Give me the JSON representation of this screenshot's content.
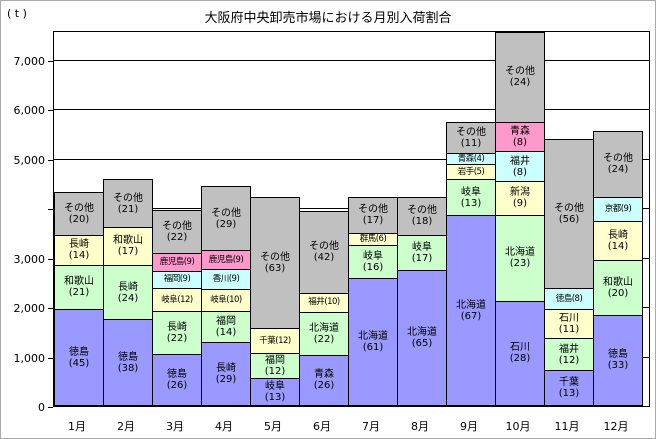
{
  "chart": {
    "title": "大阪府中央卸売市場における月別入荷割合",
    "unit_label": "( t )",
    "colors": {
      "purple": "#9999ff",
      "green": "#ccffcc",
      "yellow": "#ffffcc",
      "cyan": "#ccffff",
      "pink": "#ff99cc",
      "gray": "#c0c0c0"
    }
  },
  "chart_data": {
    "type": "bar",
    "stacked": true,
    "title": "大阪府中央卸売市場における月別入荷割合",
    "ylabel": "( t )",
    "grid": true,
    "legend": "none (labels inside segments)",
    "y_axis": {
      "max_t": 7560,
      "tick_interval": 1000,
      "ticks": [
        {
          "v": 0,
          "label": "0"
        },
        {
          "v": 1000,
          "label": "1,000"
        },
        {
          "v": 2000,
          "label": "2,000"
        },
        {
          "v": 3000,
          "label": "3,000"
        },
        {
          "v": 4000,
          "label": ""
        },
        {
          "v": 5000,
          "label": "5,000"
        },
        {
          "v": 6000,
          "label": "6,000"
        },
        {
          "v": 7000,
          "label": "7,000"
        }
      ]
    },
    "categories": [
      "1月",
      "2月",
      "3月",
      "4月",
      "5月",
      "6月",
      "7月",
      "8月",
      "9月",
      "10月",
      "11月",
      "12月"
    ],
    "bars": [
      {
        "month": "1月",
        "total_t": 4300,
        "segments": [
          {
            "name": "徳島",
            "pct": 45,
            "color": "purple",
            "two_line": true
          },
          {
            "name": "和歌山",
            "pct": 21,
            "color": "green",
            "two_line": true
          },
          {
            "name": "長崎",
            "pct": 14,
            "color": "yellow",
            "two_line": true
          },
          {
            "name": "その他",
            "pct": 20,
            "color": "gray",
            "two_line": true
          }
        ]
      },
      {
        "month": "2月",
        "total_t": 4560,
        "segments": [
          {
            "name": "徳島",
            "pct": 38,
            "color": "purple",
            "two_line": true
          },
          {
            "name": "長崎",
            "pct": 24,
            "color": "green",
            "two_line": true
          },
          {
            "name": "和歌山",
            "pct": 17,
            "color": "yellow",
            "two_line": true
          },
          {
            "name": "その他",
            "pct": 21,
            "color": "gray",
            "two_line": true
          }
        ]
      },
      {
        "month": "3月",
        "total_t": 3940,
        "segments": [
          {
            "name": "徳島",
            "pct": 26,
            "color": "purple",
            "two_line": true
          },
          {
            "name": "長崎",
            "pct": 22,
            "color": "green",
            "two_line": true
          },
          {
            "name": "岐阜",
            "pct": 12,
            "color": "yellow",
            "two_line": false
          },
          {
            "name": "福岡",
            "pct": 9,
            "color": "cyan",
            "two_line": false
          },
          {
            "name": "鹿児島",
            "pct": 9,
            "color": "pink",
            "two_line": false
          },
          {
            "name": "その他",
            "pct": 22,
            "color": "gray",
            "two_line": true
          }
        ]
      },
      {
        "month": "4月",
        "total_t": 4420,
        "segments": [
          {
            "name": "長崎",
            "pct": 29,
            "color": "purple",
            "two_line": true
          },
          {
            "name": "福岡",
            "pct": 14,
            "color": "green",
            "two_line": true
          },
          {
            "name": "岐阜",
            "pct": 10,
            "color": "yellow",
            "two_line": false
          },
          {
            "name": "香川",
            "pct": 9,
            "color": "cyan",
            "two_line": false
          },
          {
            "name": "鹿児島",
            "pct": 9,
            "color": "pink",
            "two_line": false
          },
          {
            "name": "その他",
            "pct": 29,
            "color": "gray",
            "two_line": true
          }
        ]
      },
      {
        "month": "5月",
        "total_t": 4200,
        "segments": [
          {
            "name": "岐阜",
            "pct": 13,
            "color": "purple",
            "two_line": true
          },
          {
            "name": "福岡",
            "pct": 12,
            "color": "green",
            "two_line": true
          },
          {
            "name": "千葉",
            "pct": 12,
            "color": "yellow",
            "two_line": false
          },
          {
            "name": "その他",
            "pct": 63,
            "color": "gray",
            "two_line": true
          }
        ]
      },
      {
        "month": "6月",
        "total_t": 3920,
        "segments": [
          {
            "name": "青森",
            "pct": 26,
            "color": "purple",
            "two_line": true
          },
          {
            "name": "北海道",
            "pct": 22,
            "color": "green",
            "two_line": true
          },
          {
            "name": "福井",
            "pct": 10,
            "color": "yellow",
            "two_line": false
          },
          {
            "name": "その他",
            "pct": 42,
            "color": "gray",
            "two_line": true
          }
        ]
      },
      {
        "month": "7月",
        "total_t": 4200,
        "segments": [
          {
            "name": "北海道",
            "pct": 61,
            "color": "purple",
            "two_line": true
          },
          {
            "name": "岐阜",
            "pct": 16,
            "color": "green",
            "two_line": true
          },
          {
            "name": "群馬",
            "pct": 6,
            "color": "yellow",
            "two_line": false
          },
          {
            "name": "その他",
            "pct": 17,
            "color": "gray",
            "two_line": true
          }
        ]
      },
      {
        "month": "8月",
        "total_t": 4200,
        "segments": [
          {
            "name": "北海道",
            "pct": 65,
            "color": "purple",
            "two_line": true
          },
          {
            "name": "岐阜",
            "pct": 17,
            "color": "green",
            "two_line": true
          },
          {
            "name": "その他",
            "pct": 18,
            "color": "gray",
            "two_line": true
          }
        ]
      },
      {
        "month": "9月",
        "total_t": 5720,
        "segments": [
          {
            "name": "北海道",
            "pct": 67,
            "color": "purple",
            "two_line": true
          },
          {
            "name": "岐阜",
            "pct": 13,
            "color": "green",
            "two_line": true
          },
          {
            "name": "岩手",
            "pct": 5,
            "color": "yellow",
            "two_line": false
          },
          {
            "name": "青森",
            "pct": 4,
            "color": "cyan",
            "two_line": false
          },
          {
            "name": "その他",
            "pct": 11,
            "color": "gray",
            "two_line": true
          }
        ]
      },
      {
        "month": "10月",
        "total_t": 7540,
        "segments": [
          {
            "name": "石川",
            "pct": 28,
            "color": "purple",
            "two_line": true
          },
          {
            "name": "北海道",
            "pct": 23,
            "color": "green",
            "two_line": true
          },
          {
            "name": "新潟",
            "pct": 9,
            "color": "yellow",
            "two_line": true
          },
          {
            "name": "福井",
            "pct": 8,
            "color": "cyan",
            "two_line": true
          },
          {
            "name": "青森",
            "pct": 8,
            "color": "pink",
            "two_line": true
          },
          {
            "name": "その他",
            "pct": 24,
            "color": "gray",
            "two_line": true
          }
        ]
      },
      {
        "month": "11月",
        "total_t": 5380,
        "segments": [
          {
            "name": "千葉",
            "pct": 13,
            "color": "purple",
            "two_line": true
          },
          {
            "name": "福井",
            "pct": 12,
            "color": "green",
            "two_line": true
          },
          {
            "name": "石川",
            "pct": 11,
            "color": "yellow",
            "two_line": true
          },
          {
            "name": "徳島",
            "pct": 8,
            "color": "cyan",
            "two_line": false
          },
          {
            "name": "その他",
            "pct": 56,
            "color": "gray",
            "two_line": true
          }
        ]
      },
      {
        "month": "12月",
        "total_t": 5540,
        "segments": [
          {
            "name": "徳島",
            "pct": 33,
            "color": "purple",
            "two_line": true
          },
          {
            "name": "和歌山",
            "pct": 20,
            "color": "green",
            "two_line": true
          },
          {
            "name": "長崎",
            "pct": 14,
            "color": "yellow",
            "two_line": true
          },
          {
            "name": "京都",
            "pct": 9,
            "color": "cyan",
            "two_line": false
          },
          {
            "name": "その他",
            "pct": 24,
            "color": "gray",
            "two_line": true
          }
        ]
      }
    ]
  }
}
